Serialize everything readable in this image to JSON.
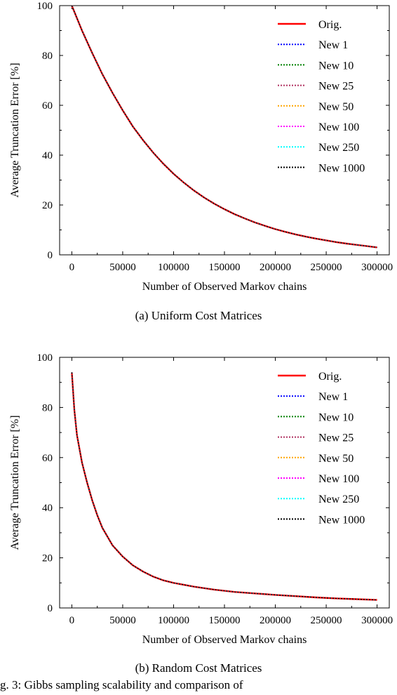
{
  "chart_data": [
    {
      "type": "line",
      "title": "",
      "xlabel": "Number of Observed Markov chains",
      "ylabel": "Average Truncation Error [%]",
      "xlim": [
        -12000,
        312000
      ],
      "ylim": [
        0,
        100
      ],
      "xticks": [
        0,
        50000,
        100000,
        150000,
        200000,
        250000,
        300000
      ],
      "yticks": [
        0,
        20,
        40,
        60,
        80,
        100
      ],
      "grid": false,
      "legend": "top-right",
      "x": [
        0,
        10000,
        20000,
        30000,
        40000,
        50000,
        60000,
        70000,
        80000,
        90000,
        100000,
        110000,
        120000,
        130000,
        140000,
        150000,
        160000,
        170000,
        180000,
        190000,
        200000,
        210000,
        220000,
        230000,
        240000,
        250000,
        260000,
        270000,
        280000,
        290000,
        300000
      ],
      "series": [
        {
          "name": "Orig.",
          "color": "#ff0000",
          "style": "solid",
          "values": [
            100,
            90,
            81,
            72.5,
            65,
            58,
            51.5,
            46,
            41,
            36.5,
            32.5,
            29,
            25.8,
            23,
            20.5,
            18.3,
            16.3,
            14.6,
            13,
            11.6,
            10.3,
            9.2,
            8.2,
            7.3,
            6.5,
            5.8,
            5.1,
            4.5,
            4,
            3.5,
            3
          ]
        },
        {
          "name": "New 1",
          "color": "#0000ff",
          "style": "dotted",
          "values": [
            100,
            90,
            81,
            72.5,
            65,
            58,
            51.5,
            46,
            41,
            36.5,
            32.5,
            29,
            25.8,
            23,
            20.5,
            18.3,
            16.3,
            14.6,
            13,
            11.6,
            10.3,
            9.2,
            8.2,
            7.3,
            6.5,
            5.8,
            5.1,
            4.5,
            4,
            3.5,
            3
          ]
        },
        {
          "name": "New 10",
          "color": "#008000",
          "style": "dotted",
          "values": [
            100,
            90,
            81,
            72.5,
            65,
            58,
            51.5,
            46,
            41,
            36.5,
            32.5,
            29,
            25.8,
            23,
            20.5,
            18.3,
            16.3,
            14.6,
            13,
            11.6,
            10.3,
            9.2,
            8.2,
            7.3,
            6.5,
            5.8,
            5.1,
            4.5,
            4,
            3.5,
            3
          ]
        },
        {
          "name": "New 25",
          "color": "#b03060",
          "style": "dotted",
          "values": [
            100,
            90,
            81,
            72.5,
            65,
            58,
            51.5,
            46,
            41,
            36.5,
            32.5,
            29,
            25.8,
            23,
            20.5,
            18.3,
            16.3,
            14.6,
            13,
            11.6,
            10.3,
            9.2,
            8.2,
            7.3,
            6.5,
            5.8,
            5.1,
            4.5,
            4,
            3.5,
            3
          ]
        },
        {
          "name": "New 50",
          "color": "#ffa500",
          "style": "dotted",
          "values": [
            100,
            90,
            81,
            72.5,
            65,
            58,
            51.5,
            46,
            41,
            36.5,
            32.5,
            29,
            25.8,
            23,
            20.5,
            18.3,
            16.3,
            14.6,
            13,
            11.6,
            10.3,
            9.2,
            8.2,
            7.3,
            6.5,
            5.8,
            5.1,
            4.5,
            4,
            3.5,
            3
          ]
        },
        {
          "name": "New 100",
          "color": "#ff00ff",
          "style": "dotted",
          "values": [
            100,
            90,
            81,
            72.5,
            65,
            58,
            51.5,
            46,
            41,
            36.5,
            32.5,
            29,
            25.8,
            23,
            20.5,
            18.3,
            16.3,
            14.6,
            13,
            11.6,
            10.3,
            9.2,
            8.2,
            7.3,
            6.5,
            5.8,
            5.1,
            4.5,
            4,
            3.5,
            3
          ]
        },
        {
          "name": "New 250",
          "color": "#00ffff",
          "style": "dotted",
          "values": [
            100,
            90,
            81,
            72.5,
            65,
            58,
            51.5,
            46,
            41,
            36.5,
            32.5,
            29,
            25.8,
            23,
            20.5,
            18.3,
            16.3,
            14.6,
            13,
            11.6,
            10.3,
            9.2,
            8.2,
            7.3,
            6.5,
            5.8,
            5.1,
            4.5,
            4,
            3.5,
            3
          ]
        },
        {
          "name": "New 1000",
          "color": "#000000",
          "style": "dotted",
          "values": [
            100,
            90,
            81,
            72.5,
            65,
            58,
            51.5,
            46,
            41,
            36.5,
            32.5,
            29,
            25.8,
            23,
            20.5,
            18.3,
            16.3,
            14.6,
            13,
            11.6,
            10.3,
            9.2,
            8.2,
            7.3,
            6.5,
            5.8,
            5.1,
            4.5,
            4,
            3.5,
            3
          ]
        }
      ]
    },
    {
      "type": "line",
      "title": "",
      "xlabel": "Number of Observed Markov chains",
      "ylabel": "Average Truncation Error [%]",
      "xlim": [
        -12000,
        312000
      ],
      "ylim": [
        0,
        100
      ],
      "xticks": [
        0,
        50000,
        100000,
        150000,
        200000,
        250000,
        300000
      ],
      "yticks": [
        0,
        20,
        40,
        60,
        80,
        100
      ],
      "grid": false,
      "legend": "top-right",
      "x": [
        0,
        2500,
        5000,
        10000,
        15000,
        20000,
        25000,
        30000,
        40000,
        50000,
        60000,
        70000,
        80000,
        90000,
        100000,
        120000,
        140000,
        160000,
        180000,
        200000,
        220000,
        240000,
        260000,
        280000,
        300000
      ],
      "series": [
        {
          "name": "Orig.",
          "color": "#ff0000",
          "style": "solid",
          "values": [
            94,
            79,
            69,
            58,
            50,
            43,
            37,
            32,
            25,
            20.5,
            17,
            14.5,
            12.5,
            11,
            10,
            8.5,
            7.3,
            6.4,
            5.8,
            5.2,
            4.7,
            4.2,
            3.8,
            3.5,
            3.2
          ]
        },
        {
          "name": "New 1",
          "color": "#0000ff",
          "style": "dotted",
          "values": [
            94,
            79,
            69,
            58,
            50,
            43,
            37,
            32,
            25,
            20.5,
            17,
            14.5,
            12.5,
            11,
            10,
            8.5,
            7.3,
            6.4,
            5.8,
            5.2,
            4.7,
            4.2,
            3.8,
            3.5,
            3.2
          ]
        },
        {
          "name": "New 10",
          "color": "#008000",
          "style": "dotted",
          "values": [
            94,
            79,
            69,
            58,
            50,
            43,
            37,
            32,
            25,
            20.5,
            17,
            14.5,
            12.5,
            11,
            10,
            8.5,
            7.3,
            6.4,
            5.8,
            5.2,
            4.7,
            4.2,
            3.8,
            3.5,
            3.2
          ]
        },
        {
          "name": "New 25",
          "color": "#b03060",
          "style": "dotted",
          "values": [
            94,
            79,
            69,
            58,
            50,
            43,
            37,
            32,
            25,
            20.5,
            17,
            14.5,
            12.5,
            11,
            10,
            8.5,
            7.3,
            6.4,
            5.8,
            5.2,
            4.7,
            4.2,
            3.8,
            3.5,
            3.2
          ]
        },
        {
          "name": "New 50",
          "color": "#ffa500",
          "style": "dotted",
          "values": [
            94,
            79,
            69,
            58,
            50,
            43,
            37,
            32,
            25,
            20.5,
            17,
            14.5,
            12.5,
            11,
            10,
            8.5,
            7.3,
            6.4,
            5.8,
            5.2,
            4.7,
            4.2,
            3.8,
            3.5,
            3.2
          ]
        },
        {
          "name": "New 100",
          "color": "#ff00ff",
          "style": "dotted",
          "values": [
            94,
            79,
            69,
            58,
            50,
            43,
            37,
            32,
            25,
            20.5,
            17,
            14.5,
            12.5,
            11,
            10,
            8.5,
            7.3,
            6.4,
            5.8,
            5.2,
            4.7,
            4.2,
            3.8,
            3.5,
            3.2
          ]
        },
        {
          "name": "New 250",
          "color": "#00ffff",
          "style": "dotted",
          "values": [
            94,
            79,
            69,
            58,
            50,
            43,
            37,
            32,
            25,
            20.5,
            17,
            14.5,
            12.5,
            11,
            10,
            8.5,
            7.3,
            6.4,
            5.8,
            5.2,
            4.7,
            4.2,
            3.8,
            3.5,
            3.2
          ]
        },
        {
          "name": "New 1000",
          "color": "#000000",
          "style": "dotted",
          "values": [
            94,
            79,
            69,
            58,
            50,
            43,
            37,
            32,
            25,
            20.5,
            17,
            14.5,
            12.5,
            11,
            10,
            8.5,
            7.3,
            6.4,
            5.8,
            5.2,
            4.7,
            4.2,
            3.8,
            3.5,
            3.2
          ]
        }
      ]
    }
  ],
  "captions": {
    "a": "(a) Uniform Cost Matrices",
    "b": "(b) Random Cost Matrices"
  },
  "footer_text": "g. 3: Gibbs sampling scalability and comparison of"
}
